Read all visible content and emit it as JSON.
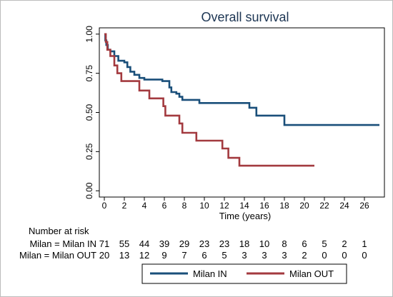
{
  "chart_data": {
    "type": "line",
    "step": true,
    "title": "Overall survival",
    "xlabel": "Time (years)",
    "ylabel": "",
    "xlim": [
      -0.5,
      28
    ],
    "ylim": [
      -0.04,
      1.04
    ],
    "x_ticks": [
      "0",
      "2",
      "4",
      "6",
      "8",
      "10",
      "12",
      "14",
      "16",
      "18",
      "20",
      "22",
      "24",
      "26"
    ],
    "y_ticks": [
      "0.00",
      "0.25",
      "0.50",
      "0.75",
      "1.00"
    ],
    "grid": false,
    "legend_position": "bottom",
    "series": [
      {
        "name": "Milan IN",
        "color": "#1a4f7a",
        "points": [
          [
            0,
            1.0
          ],
          [
            0.1,
            0.96
          ],
          [
            0.2,
            0.93
          ],
          [
            0.35,
            0.9
          ],
          [
            0.6,
            0.89
          ],
          [
            1.0,
            0.86
          ],
          [
            1.4,
            0.83
          ],
          [
            2.0,
            0.82
          ],
          [
            2.3,
            0.79
          ],
          [
            2.6,
            0.76
          ],
          [
            3.0,
            0.74
          ],
          [
            3.5,
            0.72
          ],
          [
            4.0,
            0.71
          ],
          [
            5.8,
            0.7
          ],
          [
            6.5,
            0.66
          ],
          [
            6.7,
            0.63
          ],
          [
            7.2,
            0.62
          ],
          [
            7.5,
            0.6
          ],
          [
            7.8,
            0.58
          ],
          [
            9.5,
            0.56
          ],
          [
            14.5,
            0.53
          ],
          [
            15.2,
            0.48
          ],
          [
            18.0,
            0.42
          ],
          [
            27.5,
            0.42
          ]
        ]
      },
      {
        "name": "Milan OUT",
        "color": "#a33a3f",
        "points": [
          [
            0,
            1.0
          ],
          [
            0.15,
            0.95
          ],
          [
            0.3,
            0.9
          ],
          [
            0.6,
            0.86
          ],
          [
            1.0,
            0.8
          ],
          [
            1.3,
            0.75
          ],
          [
            1.7,
            0.7
          ],
          [
            3.5,
            0.64
          ],
          [
            4.5,
            0.59
          ],
          [
            5.9,
            0.54
          ],
          [
            6.1,
            0.48
          ],
          [
            7.5,
            0.43
          ],
          [
            7.8,
            0.37
          ],
          [
            9.2,
            0.32
          ],
          [
            11.8,
            0.27
          ],
          [
            12.4,
            0.21
          ],
          [
            13.5,
            0.16
          ],
          [
            21.0,
            0.16
          ]
        ]
      }
    ],
    "risk_table": {
      "title": "Number at risk",
      "rows": [
        {
          "label": "Milan = Milan IN",
          "values": [
            "71",
            "55",
            "44",
            "39",
            "29",
            "23",
            "23",
            "18",
            "10",
            "8",
            "6",
            "5",
            "2",
            "1"
          ]
        },
        {
          "label": "Milan = Milan OUT",
          "values": [
            "20",
            "13",
            "12",
            "9",
            "7",
            "6",
            "5",
            "3",
            "3",
            "3",
            "2",
            "0",
            "0",
            "0"
          ]
        }
      ]
    }
  }
}
